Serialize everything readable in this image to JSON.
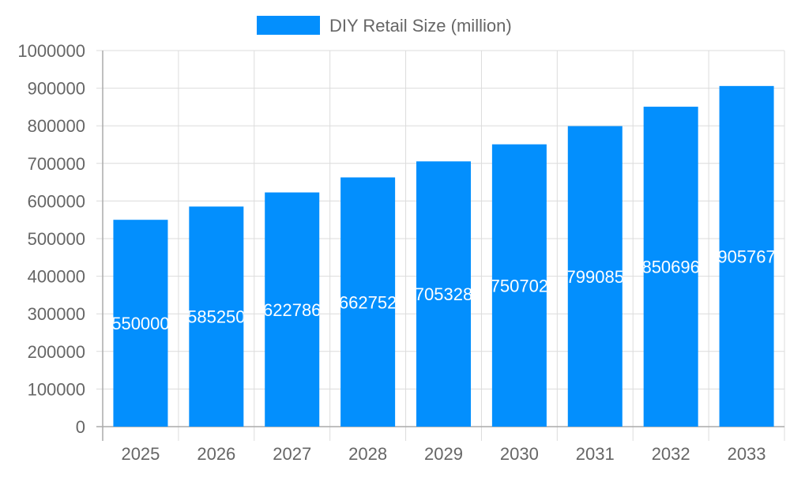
{
  "chart_data": {
    "type": "bar",
    "categories": [
      "2025",
      "2026",
      "2027",
      "2028",
      "2029",
      "2030",
      "2031",
      "2032",
      "2033"
    ],
    "series": [
      {
        "name": "DIY Retail Size (million)",
        "values": [
          550000,
          585250,
          622786,
          662752,
          705328,
          750702,
          799085,
          850696,
          905767
        ],
        "color": "#038ffd"
      }
    ],
    "ylim": [
      0,
      1000000
    ],
    "yticks": [
      0,
      100000,
      200000,
      300000,
      400000,
      500000,
      600000,
      700000,
      800000,
      900000,
      1000000
    ],
    "grid": true,
    "legend_position": "top",
    "data_labels": true
  }
}
